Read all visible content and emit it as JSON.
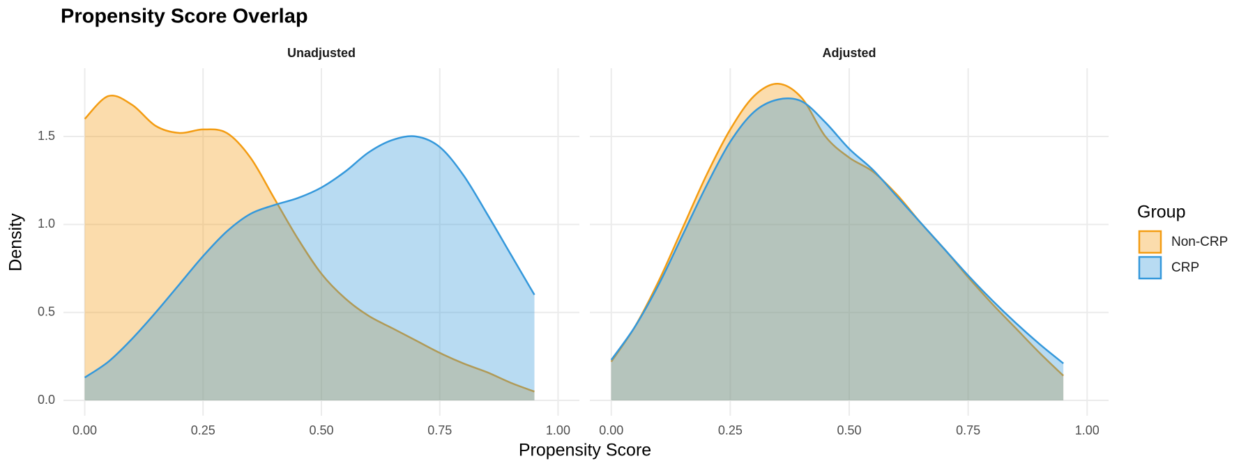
{
  "chart_data": [
    {
      "type": "area",
      "title": "Propensity Score Overlap",
      "subtitle": "Unadjusted",
      "x_label": "Propensity Score",
      "y_label": "Density",
      "legend_title": "Group",
      "legend": "right",
      "grid": true,
      "alpha": 0.35,
      "x": [
        0,
        0.05,
        0.1,
        0.15,
        0.2,
        0.25,
        0.3,
        0.35,
        0.4,
        0.45,
        0.5,
        0.55,
        0.6,
        0.65,
        0.7,
        0.75,
        0.8,
        0.85,
        0.9,
        0.95
      ],
      "series": [
        {
          "name": "Non-CRP",
          "color": "#f39c12",
          "values": [
            1.6,
            1.73,
            1.68,
            1.56,
            1.52,
            1.54,
            1.52,
            1.38,
            1.15,
            0.92,
            0.72,
            0.58,
            0.48,
            0.41,
            0.34,
            0.27,
            0.21,
            0.16,
            0.1,
            0.05
          ]
        },
        {
          "name": "CRP",
          "color": "#3498db",
          "values": [
            0.13,
            0.22,
            0.35,
            0.5,
            0.66,
            0.82,
            0.96,
            1.06,
            1.11,
            1.15,
            1.21,
            1.3,
            1.41,
            1.48,
            1.5,
            1.44,
            1.28,
            1.06,
            0.83,
            0.6
          ]
        }
      ],
      "xlim": [
        -0.045,
        1.045
      ],
      "ylim": [
        -0.087,
        1.888
      ],
      "xticks": [
        {
          "value": 0,
          "label": "0.00"
        },
        0.25,
        {
          "value": 0.5,
          "label": "0.50"
        },
        0.75,
        {
          "value": 1,
          "label": "1.00"
        }
      ],
      "yticks": [
        {
          "value": 0,
          "label": "0.0"
        },
        0.5,
        {
          "value": 1,
          "label": "1.0"
        },
        1.5
      ]
    },
    {
      "type": "area",
      "subtitle": "Adjusted",
      "grid": true,
      "alpha": 0.35,
      "x": [
        0,
        0.05,
        0.1,
        0.15,
        0.2,
        0.25,
        0.3,
        0.35,
        0.4,
        0.45,
        0.5,
        0.55,
        0.6,
        0.65,
        0.7,
        0.75,
        0.8,
        0.85,
        0.9,
        0.95
      ],
      "series": [
        {
          "color": "#f39c12",
          "values": [
            0.22,
            0.42,
            0.68,
            0.98,
            1.28,
            1.54,
            1.73,
            1.8,
            1.72,
            1.5,
            1.38,
            1.3,
            1.17,
            1.01,
            0.86,
            0.7,
            0.55,
            0.41,
            0.27,
            0.14
          ]
        },
        {
          "color": "#3498db",
          "values": [
            0.23,
            0.42,
            0.66,
            0.94,
            1.22,
            1.47,
            1.64,
            1.71,
            1.7,
            1.58,
            1.43,
            1.31,
            1.16,
            1.01,
            0.86,
            0.71,
            0.57,
            0.44,
            0.32,
            0.21
          ]
        }
      ],
      "xlim": [
        -0.045,
        1.045
      ],
      "ylim": [
        -0.087,
        1.888
      ],
      "xticks": [
        {
          "value": 0,
          "label": "0.00"
        },
        0.25,
        {
          "value": 0.5,
          "label": "0.50"
        },
        0.75,
        {
          "value": 1,
          "label": "1.00"
        }
      ]
    }
  ]
}
